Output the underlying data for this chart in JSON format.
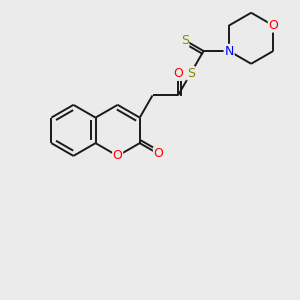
{
  "bg_color": "#ebebeb",
  "bond_color": "#1a1a1a",
  "atom_colors": {
    "O": "#ff0000",
    "N": "#0000ff",
    "S": "#888800"
  },
  "figsize": [
    3.0,
    3.0
  ],
  "dpi": 100,
  "lw": 1.4,
  "fontsize": 9
}
